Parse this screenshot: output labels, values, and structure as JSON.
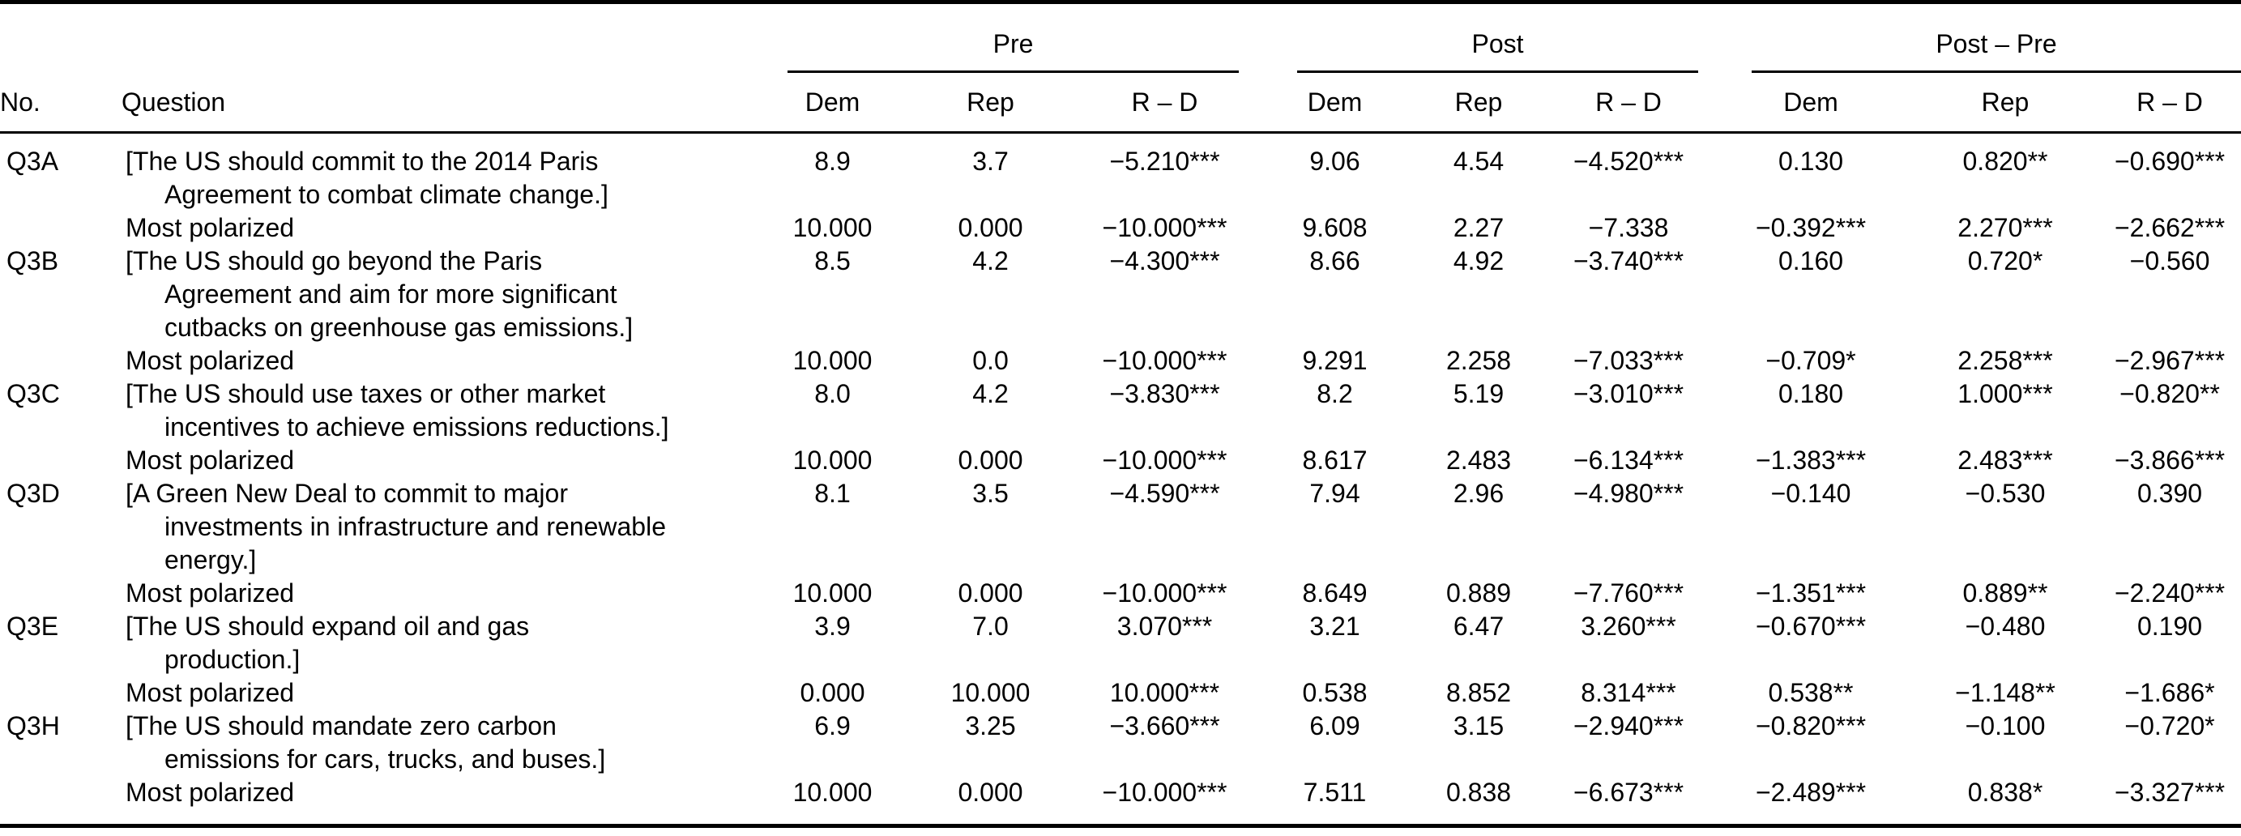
{
  "table": {
    "title": "pre-post-partisan-means-table",
    "no_header": "No.",
    "question_header": "Question",
    "groups": [
      {
        "label": "Pre"
      },
      {
        "label": "Post"
      },
      {
        "label": "Post – Pre"
      }
    ],
    "subcolumns": [
      "Dem",
      "Rep",
      "R – D"
    ],
    "rows": [
      {
        "no": "Q3A",
        "question": "[The US should commit to the 2014 Paris\nAgreement to combat climate change.]",
        "values": [
          "8.9",
          "3.7",
          "−5.210***",
          "9.06",
          "4.54",
          "−4.520***",
          "0.130",
          "0.820**",
          "−0.690***"
        ]
      },
      {
        "no": "",
        "question": "Most polarized",
        "values": [
          "10.000",
          "0.000",
          "−10.000***",
          "9.608",
          "2.27",
          "−7.338",
          "−0.392***",
          "2.270***",
          "−2.662***"
        ]
      },
      {
        "no": "Q3B",
        "question": "[The US should go beyond the Paris\nAgreement and aim for more significant\ncutbacks on greenhouse gas emissions.]",
        "values": [
          "8.5",
          "4.2",
          "−4.300***",
          "8.66",
          "4.92",
          "−3.740***",
          "0.160",
          "0.720*",
          "−0.560"
        ]
      },
      {
        "no": "",
        "question": "Most polarized",
        "values": [
          "10.000",
          "0.0",
          "−10.000***",
          "9.291",
          "2.258",
          "−7.033***",
          "−0.709*",
          "2.258***",
          "−2.967***"
        ]
      },
      {
        "no": "Q3C",
        "question": "[The US should use taxes or other market\nincentives to achieve emissions reductions.]",
        "values": [
          "8.0",
          "4.2",
          "−3.830***",
          "8.2",
          "5.19",
          "−3.010***",
          "0.180",
          "1.000***",
          "−0.820**"
        ]
      },
      {
        "no": "",
        "question": "Most polarized",
        "values": [
          "10.000",
          "0.000",
          "−10.000***",
          "8.617",
          "2.483",
          "−6.134***",
          "−1.383***",
          "2.483***",
          "−3.866***"
        ]
      },
      {
        "no": "Q3D",
        "question": "[A Green New Deal to commit to major\ninvestments in infrastructure and renewable\nenergy.]",
        "values": [
          "8.1",
          "3.5",
          "−4.590***",
          "7.94",
          "2.96",
          "−4.980***",
          "−0.140",
          "−0.530",
          "0.390"
        ]
      },
      {
        "no": "",
        "question": "Most polarized",
        "values": [
          "10.000",
          "0.000",
          "−10.000***",
          "8.649",
          "0.889",
          "−7.760***",
          "−1.351***",
          "0.889**",
          "−2.240***"
        ]
      },
      {
        "no": "Q3E",
        "question": "[The US should expand oil and gas\nproduction.]",
        "values": [
          "3.9",
          "7.0",
          "3.070***",
          "3.21",
          "6.47",
          "3.260***",
          "−0.670***",
          "−0.480",
          "0.190"
        ]
      },
      {
        "no": "",
        "question": "Most polarized",
        "values": [
          "0.000",
          "10.000",
          "10.000***",
          "0.538",
          "8.852",
          "8.314***",
          "0.538**",
          "−1.148**",
          "−1.686*"
        ]
      },
      {
        "no": "Q3H",
        "question": "[The US should mandate zero carbon\nemissions for cars, trucks, and buses.]",
        "values": [
          "6.9",
          "3.25",
          "−3.660***",
          "6.09",
          "3.15",
          "−2.940***",
          "−0.820***",
          "−0.100",
          "−0.720*"
        ]
      },
      {
        "no": "",
        "question": "Most polarized",
        "values": [
          "10.000",
          "0.000",
          "−10.000***",
          "7.511",
          "0.838",
          "−6.673***",
          "−2.489***",
          "0.838*",
          "−3.327***"
        ]
      }
    ]
  }
}
